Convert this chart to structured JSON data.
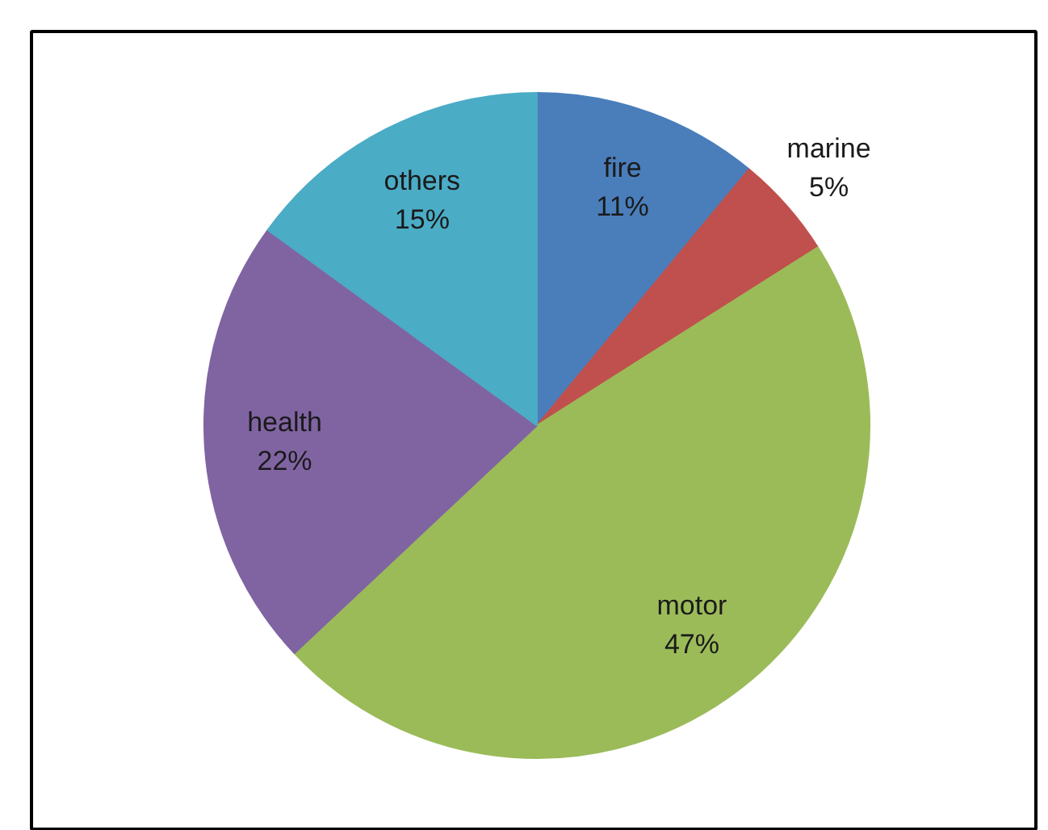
{
  "chart_data": {
    "type": "pie",
    "categories": [
      "fire",
      "marine",
      "motor",
      "health",
      "others"
    ],
    "values": [
      11,
      5,
      47,
      22,
      15
    ],
    "colors": [
      "#4a7ebb",
      "#c0504d",
      "#9bbb59",
      "#8064a2",
      "#4bacc6"
    ],
    "value_labels": [
      "11%",
      "5%",
      "47%",
      "22%",
      "15%"
    ]
  }
}
